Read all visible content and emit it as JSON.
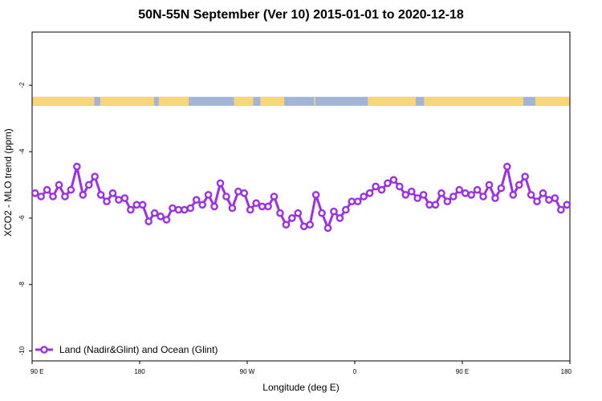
{
  "chart_data": {
    "type": "line",
    "title": "50N-55N September (Ver 10)   2015-01-01 to 2020-12-18",
    "xlabel": "Longitude (deg E)",
    "ylabel": "XCO2 - MLO trend (ppm)",
    "xlim": [
      90,
      540
    ],
    "ylim": [
      -10.3,
      -0.4
    ],
    "x_ticks": [
      {
        "value": 90,
        "label": "90 E"
      },
      {
        "value": 180,
        "label": "180"
      },
      {
        "value": 270,
        "label": "90 W"
      },
      {
        "value": 360,
        "label": "0"
      },
      {
        "value": 450,
        "label": "90 E"
      },
      {
        "value": 540,
        "label": "180"
      }
    ],
    "y_ticks": [
      {
        "value": -2,
        "label": "-2"
      },
      {
        "value": -4,
        "label": "-4"
      },
      {
        "value": -6,
        "label": "-6"
      },
      {
        "value": -8,
        "label": "-8"
      },
      {
        "value": -10,
        "label": "-10"
      }
    ],
    "land_ocean_band": {
      "y_range": [
        -2.35,
        -2.62
      ],
      "ocean_color": "#a3b5d6",
      "land_color": "#f7d67a",
      "land_segments": [
        [
          90,
          142
        ],
        [
          147,
          192
        ],
        [
          196,
          221
        ],
        [
          259,
          275
        ],
        [
          281,
          301
        ],
        [
          326,
          327
        ],
        [
          371,
          411
        ],
        [
          418,
          501
        ],
        [
          511,
          540
        ]
      ]
    },
    "series": [
      {
        "name": "Land (Nadir&Glint) and Ocean (Glint)",
        "color": "#9b30e6",
        "x": [
          92.5,
          97.5,
          102.5,
          107.5,
          112.5,
          117.5,
          122.5,
          127.5,
          132.5,
          137.5,
          142.5,
          147.5,
          152.5,
          157.5,
          162.5,
          167.5,
          172.5,
          177.5,
          182.5,
          187.5,
          192.5,
          197.5,
          202.5,
          207.5,
          212.5,
          217.5,
          222.5,
          227.5,
          232.5,
          237.5,
          242.5,
          247.5,
          252.5,
          257.5,
          262.5,
          267.5,
          272.5,
          277.5,
          282.5,
          287.5,
          292.5,
          297.5,
          302.5,
          307.5,
          312.5,
          317.5,
          322.5,
          327.5,
          332.5,
          337.5,
          342.5,
          347.5,
          352.5,
          357.5,
          362.5,
          367.5,
          372.5,
          377.5,
          382.5,
          387.5,
          392.5,
          397.5,
          402.5,
          407.5,
          412.5,
          417.5,
          422.5,
          427.5,
          432.5,
          437.5,
          442.5,
          447.5,
          452.5,
          457.5,
          462.5,
          467.5,
          472.5,
          477.5,
          482.5,
          487.5,
          492.5,
          497.5,
          502.5,
          507.5,
          512.5,
          517.5,
          522.5,
          527.5,
          532.5,
          537.5
        ],
        "values": [
          -5.25,
          -5.35,
          -5.15,
          -5.35,
          -5.0,
          -5.35,
          -5.15,
          -4.45,
          -5.3,
          -5.0,
          -4.75,
          -5.3,
          -5.5,
          -5.25,
          -5.45,
          -5.4,
          -5.75,
          -5.6,
          -5.6,
          -6.1,
          -5.85,
          -5.95,
          -6.05,
          -5.7,
          -5.75,
          -5.75,
          -5.7,
          -5.45,
          -5.6,
          -5.3,
          -5.65,
          -4.95,
          -5.35,
          -5.7,
          -5.2,
          -5.25,
          -5.75,
          -5.55,
          -5.65,
          -5.65,
          -5.35,
          -5.85,
          -6.2,
          -6.0,
          -5.85,
          -6.25,
          -6.2,
          -5.3,
          -5.85,
          -6.3,
          -5.8,
          -6.0,
          -5.75,
          -5.5,
          -5.5,
          -5.35,
          -5.25,
          -5.05,
          -5.15,
          -4.95,
          -4.85,
          -5.05,
          -5.3,
          -5.2,
          -5.4,
          -5.3,
          -5.6,
          -5.6,
          -5.25,
          -5.5,
          -5.35,
          -5.15,
          -5.25,
          -5.3,
          -5.15,
          -5.35,
          -5.0,
          -5.4,
          -5.1,
          -4.45,
          -5.3,
          -5.0,
          -4.75,
          -5.3,
          -5.5,
          -5.25,
          -5.45,
          -5.4,
          -5.75,
          -5.6
        ]
      }
    ],
    "legend": {
      "position": "bottom-left",
      "entries": [
        "Land (Nadir&Glint) and Ocean (Glint)"
      ]
    },
    "grid": false
  }
}
